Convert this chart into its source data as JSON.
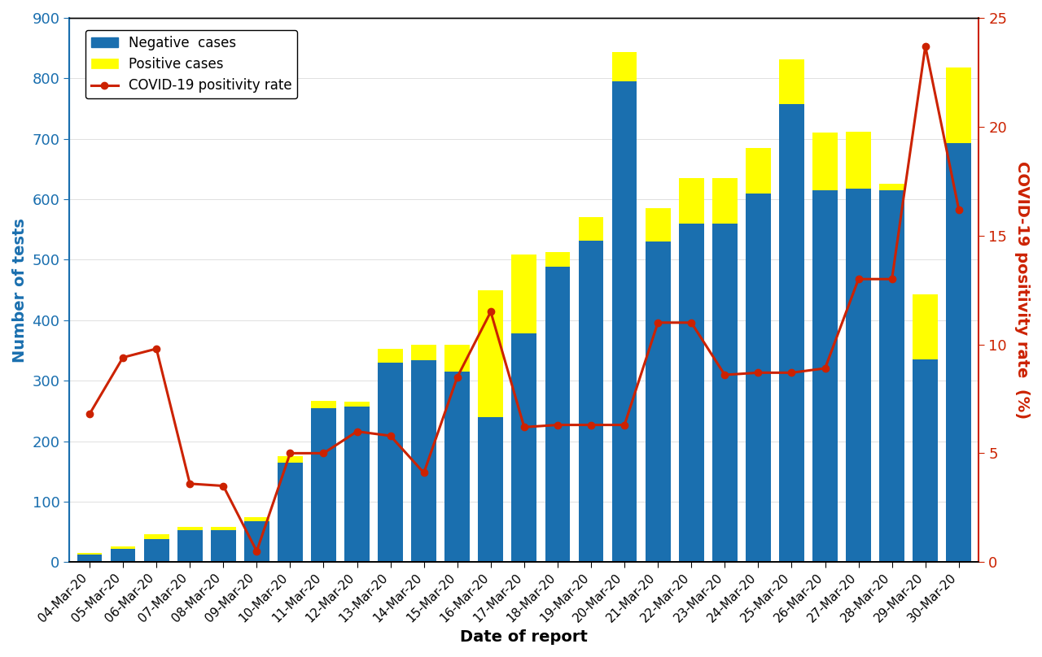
{
  "dates": [
    "04-Mar-20",
    "05-Mar-20",
    "06-Mar-20",
    "07-Mar-20",
    "08-Mar-20",
    "09-Mar-20",
    "10-Mar-20",
    "11-Mar-20",
    "12-Mar-20",
    "13-Mar-20",
    "14-Mar-20",
    "15-Mar-20",
    "16-Mar-20",
    "17-Mar-20",
    "18-Mar-20",
    "19-Mar-20",
    "20-Mar-20",
    "21-Mar-20",
    "22-Mar-20",
    "23-Mar-20",
    "24-Mar-20",
    "25-Mar-20",
    "26-Mar-20",
    "27-Mar-20",
    "28-Mar-20",
    "29-Mar-20",
    "30-Mar-20"
  ],
  "negative_cases": [
    13,
    22,
    38,
    53,
    53,
    68,
    165,
    255,
    257,
    330,
    334,
    315,
    240,
    378,
    488,
    532,
    795,
    530,
    560,
    560,
    610,
    757,
    615,
    617,
    615,
    335,
    693
  ],
  "positive_cases": [
    2,
    4,
    8,
    5,
    5,
    6,
    10,
    12,
    8,
    22,
    25,
    45,
    210,
    130,
    25,
    38,
    48,
    55,
    75,
    75,
    75,
    75,
    95,
    95,
    10,
    108,
    125
  ],
  "positivity_rate": [
    6.8,
    9.4,
    9.8,
    3.6,
    3.5,
    0.5,
    5.0,
    5.0,
    6.0,
    5.8,
    4.1,
    8.5,
    11.5,
    6.2,
    6.3,
    6.3,
    6.3,
    11.0,
    11.0,
    8.6,
    8.7,
    8.7,
    8.9,
    13.0,
    13.0,
    23.7,
    16.2
  ],
  "bar_blue": "#1a6faf",
  "bar_yellow": "#ffff00",
  "line_color": "#cc2200",
  "left_axis_color": "#1a6faf",
  "right_axis_color": "#cc2200",
  "ylim_left": [
    0,
    900
  ],
  "ylim_right": [
    0,
    25
  ],
  "yticks_left": [
    0,
    100,
    200,
    300,
    400,
    500,
    600,
    700,
    800,
    900
  ],
  "yticks_right": [
    0,
    5,
    10,
    15,
    20,
    25
  ],
  "xlabel": "Date of report",
  "ylabel_left": "Number of tests",
  "ylabel_right": "COVID-19 positivity rate  (%)",
  "legend_labels": [
    "Negative  cases",
    "Positive cases",
    "COVID-19 positivity rate"
  ],
  "figsize": [
    12.8,
    8.08
  ],
  "dpi": 100
}
